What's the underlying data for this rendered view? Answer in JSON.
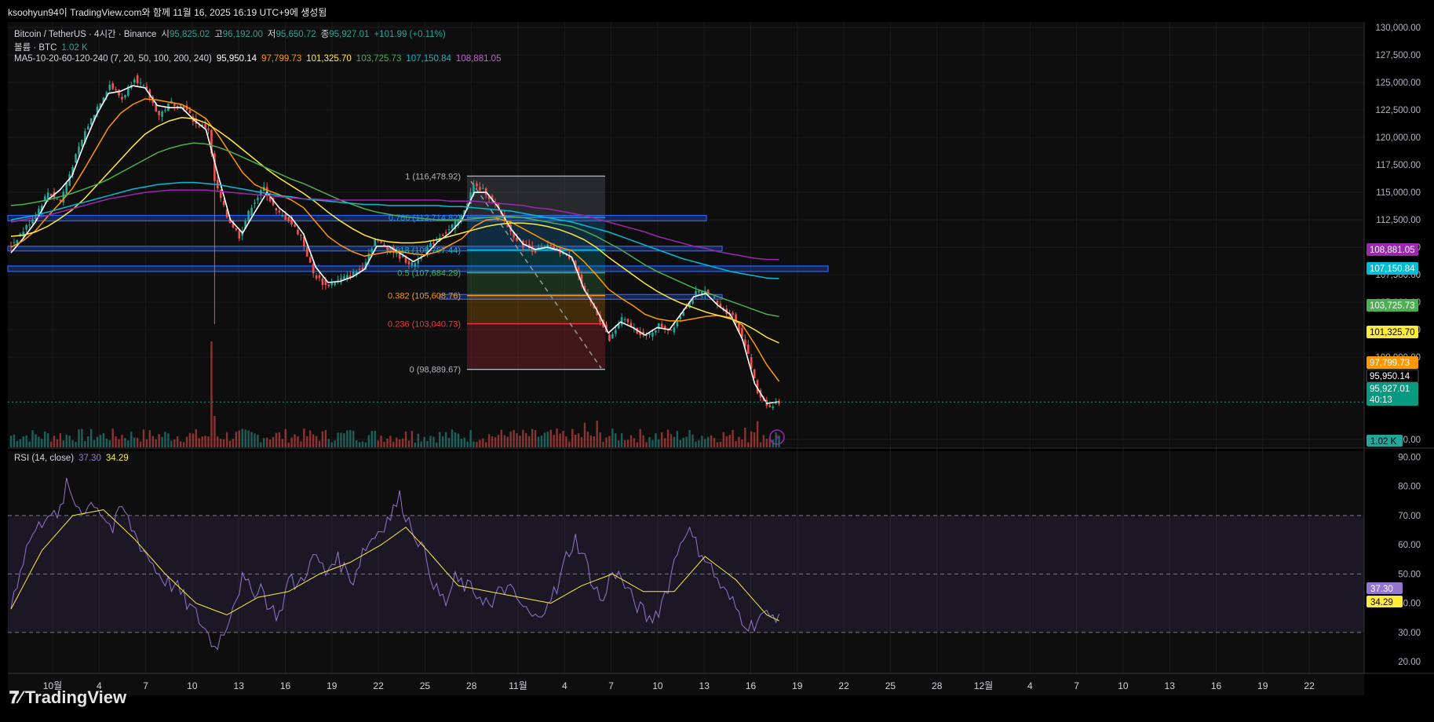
{
  "header": {
    "caption": "ksoohyun94이 TradingView.com와 함께 11월 16, 2025 16:19 UTC+9에 생성됨"
  },
  "legend": {
    "symbol": "Bitcoin / TetherUS · 4시간 · Binance",
    "open_label": "시",
    "open": "95,825.02",
    "high_label": "고",
    "high": "96,192.00",
    "low_label": "저",
    "low": "95,650.72",
    "close_label": "종",
    "close": "95,927.01",
    "change": "+101.99 (+0.11%)",
    "volume_label": "볼륨 · BTC",
    "volume": "1.02 K",
    "ma_label": "MA5-10-20-60-120-240 (7, 20, 50, 100, 200, 240)",
    "ma_values": [
      "95,950.14",
      "97,799.73",
      "101,325.70",
      "103,725.73",
      "107,150.84",
      "108,881.05"
    ],
    "rsi_label": "RSI (14, close)",
    "rsi_values": [
      "37.30",
      "34.29"
    ]
  },
  "colors": {
    "up": "#26a69a",
    "down": "#ef5350",
    "ma": [
      "#ffffff",
      "#ff9800",
      "#ffeb3b",
      "#4caf50",
      "#00bcd4",
      "#9c27b0"
    ],
    "rsi": "#9575cd",
    "rsi_ma": "#ffeb3b",
    "zone": "#2962ff"
  },
  "chart_data": {
    "type": "candlestick",
    "price_axis": {
      "ticks": [
        "130,000.00",
        "127,500.00",
        "125,000.00",
        "122,500.00",
        "120,000.00",
        "117,500.00",
        "115,000.00",
        "112,500.00",
        "110,000.00",
        "107,500.00",
        "105,000.00",
        "102,500.00",
        "100,000.00",
        "92,500.00"
      ],
      "range": [
        91800,
        130500
      ]
    },
    "price_tags": [
      {
        "value": 108881.05,
        "text": "108,881.05",
        "color": "#9c27b0"
      },
      {
        "value": 107150.84,
        "text": "107,150.84",
        "color": "#00bcd4"
      },
      {
        "value": 103725.73,
        "text": "103,725.73",
        "color": "#4caf50"
      },
      {
        "value": 101325.7,
        "text": "101,325.70",
        "color": "#ffeb3b"
      },
      {
        "value": 97799.73,
        "text": "97,799.73",
        "color": "#ff9800"
      },
      {
        "value": 95950.14,
        "text": "95,950.14",
        "color": "#ffffff"
      },
      {
        "value": 95927.01,
        "text": "95,927.01",
        "color": "#089981",
        "sub": "40:13"
      }
    ],
    "volume_tag": "1.02 K",
    "time_axis": [
      "10월",
      "4",
      "7",
      "10",
      "13",
      "16",
      "19",
      "22",
      "25",
      "28",
      "11월",
      "4",
      "7",
      "10",
      "13",
      "16",
      "19",
      "22",
      "25",
      "28",
      "12월",
      "4",
      "7",
      "10",
      "13",
      "16",
      "19",
      "22"
    ],
    "candles_ohlc_keypoints": [
      [
        0,
        110200
      ],
      [
        4,
        111500
      ],
      [
        8,
        113000
      ],
      [
        12,
        115000
      ],
      [
        16,
        114200
      ],
      [
        20,
        117500
      ],
      [
        24,
        120500
      ],
      [
        28,
        122800
      ],
      [
        32,
        124800
      ],
      [
        36,
        123500
      ],
      [
        40,
        125500
      ],
      [
        44,
        124200
      ],
      [
        48,
        122000
      ],
      [
        52,
        123200
      ],
      [
        56,
        122800
      ],
      [
        60,
        121200
      ],
      [
        64,
        120800
      ],
      [
        66,
        116000
      ],
      [
        70,
        112800
      ],
      [
        74,
        111000
      ],
      [
        78,
        113800
      ],
      [
        82,
        115400
      ],
      [
        86,
        113200
      ],
      [
        90,
        112500
      ],
      [
        94,
        111000
      ],
      [
        98,
        107600
      ],
      [
        102,
        106500
      ],
      [
        106,
        107000
      ],
      [
        110,
        107400
      ],
      [
        114,
        108200
      ],
      [
        118,
        110700
      ],
      [
        122,
        110000
      ],
      [
        126,
        109200
      ],
      [
        130,
        108400
      ],
      [
        134,
        109500
      ],
      [
        138,
        110800
      ],
      [
        142,
        111600
      ],
      [
        146,
        112800
      ],
      [
        150,
        115600
      ],
      [
        154,
        115000
      ],
      [
        158,
        113400
      ],
      [
        162,
        111400
      ],
      [
        166,
        110200
      ],
      [
        170,
        109700
      ],
      [
        174,
        110100
      ],
      [
        178,
        109600
      ],
      [
        182,
        109000
      ],
      [
        186,
        105800
      ],
      [
        190,
        104000
      ],
      [
        194,
        101500
      ],
      [
        198,
        103500
      ],
      [
        202,
        102600
      ],
      [
        206,
        101800
      ],
      [
        210,
        102900
      ],
      [
        214,
        102500
      ],
      [
        218,
        104300
      ],
      [
        222,
        105800
      ],
      [
        226,
        106000
      ],
      [
        230,
        104500
      ],
      [
        234,
        103800
      ],
      [
        238,
        101200
      ],
      [
        242,
        96800
      ],
      [
        246,
        95400
      ],
      [
        249,
        95927
      ]
    ],
    "ma_series": [
      {
        "name": "7",
        "values": [
          109500,
          110800,
          112300,
          114300,
          115200,
          116500,
          119400,
          122000,
          124000,
          124200,
          124700,
          124500,
          122900,
          122700,
          122700,
          121600,
          120700,
          116500,
          112500,
          111300,
          113200,
          115000,
          113600,
          112700,
          111200,
          108200,
          106800,
          106900,
          107300,
          108000,
          110100,
          110100,
          109400,
          108700,
          109300,
          110500,
          111300,
          112500,
          115000,
          115000,
          113600,
          111700,
          110300,
          109800,
          110000,
          109700,
          109100,
          106200,
          104400,
          102200,
          103200,
          102700,
          102000,
          102700,
          102500,
          104000,
          105500,
          105800,
          104700,
          103900,
          101600,
          97600,
          95800,
          95950
        ]
      },
      {
        "name": "20",
        "values": [
          110000,
          110600,
          111500,
          112800,
          114000,
          115300,
          117100,
          119000,
          120900,
          122200,
          123000,
          123500,
          123400,
          123200,
          123000,
          122400,
          121700,
          120200,
          118500,
          116800,
          115700,
          115200,
          114800,
          114300,
          113600,
          112300,
          111000,
          110200,
          109600,
          109200,
          109400,
          109600,
          109600,
          109400,
          109300,
          109600,
          110200,
          110800,
          111900,
          112500,
          112600,
          112300,
          111700,
          111100,
          110500,
          110000,
          109700,
          108700,
          107500,
          106200,
          105400,
          104700,
          103900,
          103500,
          103300,
          103300,
          103500,
          103700,
          103800,
          103600,
          102900,
          101200,
          99300,
          97800
        ]
      },
      {
        "name": "50",
        "values": [
          111000,
          111100,
          111400,
          111900,
          112600,
          113400,
          114400,
          115600,
          116800,
          118000,
          119200,
          120300,
          121000,
          121500,
          121800,
          121700,
          121300,
          120600,
          119800,
          118900,
          118000,
          117100,
          116300,
          115600,
          114900,
          114100,
          113200,
          112400,
          111700,
          111100,
          110700,
          110500,
          110400,
          110400,
          110500,
          110700,
          111000,
          111300,
          111600,
          111900,
          112100,
          112200,
          112200,
          112100,
          111900,
          111600,
          111200,
          110700,
          110000,
          109100,
          108300,
          107500,
          106700,
          106000,
          105400,
          104900,
          104500,
          104100,
          103800,
          103500,
          103100,
          102500,
          101800,
          101300
        ]
      },
      {
        "name": "100",
        "values": [
          113800,
          113900,
          114100,
          114300,
          114600,
          114900,
          115300,
          115700,
          116200,
          116800,
          117400,
          118000,
          118600,
          119000,
          119300,
          119500,
          119400,
          119100,
          118700,
          118200,
          117700,
          117200,
          116700,
          116200,
          115800,
          115300,
          114800,
          114300,
          113900,
          113500,
          113200,
          113000,
          112800,
          112700,
          112600,
          112500,
          112500,
          112500,
          112600,
          112700,
          112800,
          112800,
          112700,
          112500,
          112300,
          112100,
          111900,
          111500,
          111000,
          110400,
          109800,
          109100,
          108400,
          107800,
          107300,
          106800,
          106300,
          105900,
          105500,
          105100,
          104700,
          104300,
          103900,
          103700
        ]
      },
      {
        "name": "200",
        "values": [
          112500,
          112700,
          112900,
          113200,
          113500,
          113800,
          114100,
          114400,
          114700,
          115000,
          115300,
          115500,
          115700,
          115800,
          115900,
          115900,
          115800,
          115700,
          115500,
          115300,
          115100,
          114900,
          114700,
          114600,
          114400,
          114300,
          114200,
          114100,
          114000,
          113900,
          113900,
          113800,
          113800,
          113800,
          113800,
          113800,
          113700,
          113700,
          113600,
          113500,
          113400,
          113300,
          113100,
          112900,
          112700,
          112500,
          112300,
          112000,
          111700,
          111400,
          111000,
          110600,
          110200,
          109800,
          109400,
          109000,
          108700,
          108400,
          108100,
          107800,
          107600,
          107400,
          107200,
          107150
        ]
      },
      {
        "name": "240",
        "values": [
          112300,
          112500,
          112700,
          112900,
          113200,
          113500,
          113800,
          114100,
          114400,
          114600,
          114800,
          115000,
          115100,
          115200,
          115200,
          115200,
          115200,
          115100,
          115000,
          114900,
          114800,
          114700,
          114600,
          114500,
          114400,
          114400,
          114300,
          114300,
          114300,
          114300,
          114300,
          114300,
          114300,
          114300,
          114300,
          114300,
          114200,
          114200,
          114200,
          114100,
          114000,
          113900,
          113800,
          113600,
          113500,
          113300,
          113100,
          112900,
          112600,
          112300,
          112000,
          111700,
          111400,
          111000,
          110700,
          110400,
          110100,
          109900,
          109600,
          109400,
          109200,
          109000,
          108900,
          108881
        ]
      }
    ],
    "fib_levels": [
      {
        "ratio": "1",
        "value": 116478.92,
        "label": "1 (116,478.92)",
        "color": "#b2b5be"
      },
      {
        "ratio": "0.786",
        "value": 112714.82,
        "label": "0.786 (112,714.82)",
        "color": "#2196f3"
      },
      {
        "ratio": "0.618",
        "value": 109767.44,
        "label": "0.618 (109,767.44)",
        "color": "#00bcd4"
      },
      {
        "ratio": "0.5",
        "value": 107684.29,
        "label": "0.5 (107,684.29)",
        "color": "#4caf50"
      },
      {
        "ratio": "0.382",
        "value": 105608.76,
        "label": "0.382 (105,608.76)",
        "color": "#ff9800"
      },
      {
        "ratio": "0.236",
        "value": 103040.73,
        "label": "0.236 (103,040.73)",
        "color": "#f23645"
      },
      {
        "ratio": "0",
        "value": 98889.67,
        "label": "0 (98,889.67)",
        "color": "#b2b5be"
      }
    ],
    "zones": [
      {
        "low": 112400,
        "high": 112900
      },
      {
        "low": 109700,
        "high": 110100
      },
      {
        "low": 107800,
        "high": 108300
      },
      {
        "low": 105400,
        "high": 105700
      }
    ],
    "rsi_axis": {
      "ticks": [
        "90.00",
        "80.00",
        "70.00",
        "60.00",
        "50.00",
        "40.00",
        "30.00",
        "20.00"
      ],
      "range": [
        16,
        92
      ],
      "bands": [
        30,
        50,
        70
      ]
    },
    "rsi_tags": [
      {
        "value": 37.3,
        "text": "37.30",
        "color": "#9575cd"
      },
      {
        "value": 34.29,
        "text": "34.29",
        "color": "#ffeb3b"
      }
    ],
    "rsi_keypoints": [
      [
        0,
        39
      ],
      [
        3,
        52
      ],
      [
        6,
        62
      ],
      [
        9,
        66
      ],
      [
        12,
        72
      ],
      [
        15,
        68
      ],
      [
        18,
        80
      ],
      [
        21,
        74
      ],
      [
        24,
        72
      ],
      [
        27,
        75
      ],
      [
        30,
        70
      ],
      [
        33,
        65
      ],
      [
        36,
        73
      ],
      [
        39,
        66
      ],
      [
        42,
        60
      ],
      [
        45,
        55
      ],
      [
        48,
        50
      ],
      [
        51,
        47
      ],
      [
        54,
        45
      ],
      [
        57,
        40
      ],
      [
        60,
        36
      ],
      [
        63,
        31
      ],
      [
        66,
        25
      ],
      [
        69,
        30
      ],
      [
        72,
        40
      ],
      [
        75,
        48
      ],
      [
        78,
        44
      ],
      [
        81,
        46
      ],
      [
        84,
        38
      ],
      [
        87,
        36
      ],
      [
        90,
        48
      ],
      [
        93,
        46
      ],
      [
        96,
        52
      ],
      [
        99,
        56
      ],
      [
        102,
        50
      ],
      [
        105,
        56
      ],
      [
        108,
        52
      ],
      [
        111,
        48
      ],
      [
        114,
        58
      ],
      [
        117,
        62
      ],
      [
        120,
        66
      ],
      [
        123,
        70
      ],
      [
        126,
        76
      ],
      [
        129,
        68
      ],
      [
        132,
        62
      ],
      [
        135,
        54
      ],
      [
        138,
        44
      ],
      [
        141,
        40
      ],
      [
        144,
        48
      ],
      [
        147,
        46
      ],
      [
        150,
        44
      ],
      [
        153,
        42
      ],
      [
        156,
        38
      ],
      [
        159,
        46
      ],
      [
        162,
        44
      ],
      [
        165,
        40
      ],
      [
        168,
        36
      ],
      [
        171,
        34
      ],
      [
        174,
        42
      ],
      [
        177,
        44
      ],
      [
        180,
        56
      ],
      [
        183,
        62
      ],
      [
        186,
        55
      ],
      [
        189,
        46
      ],
      [
        192,
        40
      ],
      [
        195,
        52
      ],
      [
        198,
        48
      ],
      [
        201,
        42
      ],
      [
        204,
        38
      ],
      [
        207,
        34
      ],
      [
        210,
        38
      ],
      [
        213,
        46
      ],
      [
        216,
        58
      ],
      [
        219,
        66
      ],
      [
        222,
        60
      ],
      [
        225,
        56
      ],
      [
        228,
        50
      ],
      [
        231,
        44
      ],
      [
        234,
        40
      ],
      [
        237,
        35
      ],
      [
        240,
        32
      ],
      [
        243,
        36
      ],
      [
        246,
        35
      ],
      [
        249,
        37
      ]
    ],
    "rsi_ma_keypoints": [
      [
        0,
        38
      ],
      [
        10,
        58
      ],
      [
        20,
        70
      ],
      [
        30,
        72
      ],
      [
        40,
        62
      ],
      [
        50,
        50
      ],
      [
        60,
        40
      ],
      [
        70,
        36
      ],
      [
        80,
        42
      ],
      [
        90,
        44
      ],
      [
        100,
        50
      ],
      [
        110,
        54
      ],
      [
        120,
        60
      ],
      [
        128,
        66
      ],
      [
        135,
        58
      ],
      [
        145,
        46
      ],
      [
        155,
        44
      ],
      [
        165,
        42
      ],
      [
        175,
        40
      ],
      [
        185,
        46
      ],
      [
        195,
        50
      ],
      [
        205,
        44
      ],
      [
        215,
        44
      ],
      [
        225,
        56
      ],
      [
        235,
        48
      ],
      [
        245,
        36
      ],
      [
        249,
        34
      ]
    ]
  },
  "branding": {
    "logo_text": "TradingView"
  }
}
